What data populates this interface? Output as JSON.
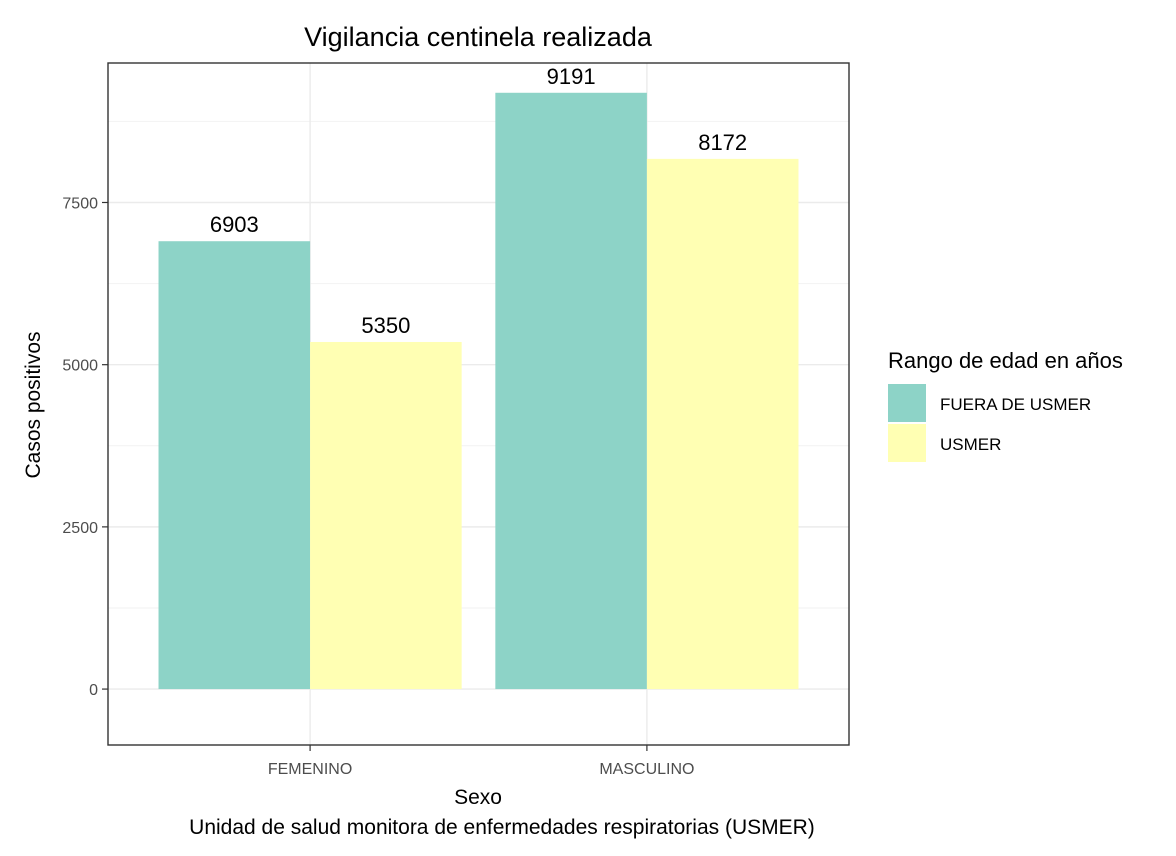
{
  "chart_data": {
    "type": "bar",
    "title": "Vigilancia centinela realizada",
    "xlabel": "Sexo",
    "ylabel": "Casos positivos",
    "caption": "Unidad de salud monitora de enfermedades respiratorias (USMER)",
    "categories": [
      "FEMENINO",
      "MASCULINO"
    ],
    "series": [
      {
        "name": "FUERA DE USMER",
        "values": [
          6903,
          9191
        ],
        "color": "#8DD3C7"
      },
      {
        "name": "USMER",
        "values": [
          5350,
          8172
        ],
        "color": "#FFFFB3"
      }
    ],
    "ylim": [
      -862,
      9650
    ],
    "yticks": [
      0,
      2500,
      5000,
      7500
    ],
    "ytick_labels": [
      "0",
      "2500",
      "5000",
      "7500"
    ],
    "grid": true,
    "legend": {
      "title": "Rango de edad en años",
      "position": "right"
    }
  }
}
